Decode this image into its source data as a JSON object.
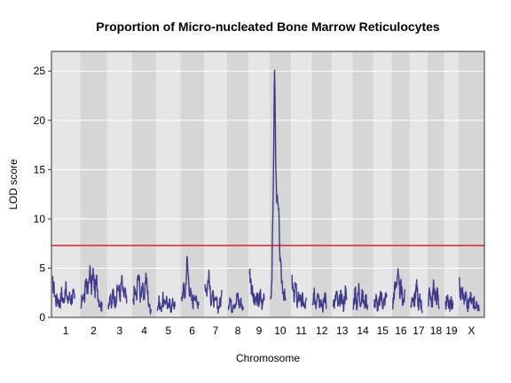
{
  "chart_data": {
    "type": "line",
    "title": "Proportion of Micro-nucleated Bone Marrow Reticulocytes",
    "xlabel": "Chromosome",
    "ylabel": "LOD score",
    "ylim": [
      0,
      27
    ],
    "yticks": [
      0,
      5,
      10,
      15,
      20,
      25
    ],
    "grid": true,
    "chromosomes": [
      "1",
      "2",
      "3",
      "4",
      "5",
      "6",
      "7",
      "8",
      "9",
      "10",
      "11",
      "12",
      "13",
      "14",
      "15",
      "16",
      "17",
      "18",
      "19",
      "X"
    ],
    "chromosome_lengths": [
      195,
      182,
      160,
      157,
      152,
      150,
      145,
      130,
      125,
      131,
      122,
      120,
      121,
      125,
      104,
      98,
      95,
      91,
      61,
      171
    ],
    "threshold": 7.3,
    "threshold_color": "#dd2222",
    "line_color": "#3f3a8c",
    "peaks": [
      {
        "chromosome": "1",
        "values": [
          3.5,
          2.8,
          1.6,
          2.0,
          1.2,
          2.6,
          1.4,
          3.3,
          1.5,
          2.2,
          1.8,
          2.4,
          1.6
        ]
      },
      {
        "chromosome": "2",
        "values": [
          0.8,
          2.5,
          1.8,
          3.9,
          2.4,
          5.0,
          3.0,
          4.6,
          2.7,
          3.8,
          2.0,
          1.5,
          1.0
        ]
      },
      {
        "chromosome": "3",
        "values": [
          1.2,
          2.3,
          0.9,
          2.8,
          1.6,
          2.2,
          3.2,
          2.0,
          3.9,
          2.1,
          2.6,
          1.3
        ]
      },
      {
        "chromosome": "4",
        "values": [
          1.5,
          2.9,
          1.8,
          5.0,
          2.2,
          3.3,
          1.4,
          4.4,
          2.6,
          1.0,
          0.9
        ]
      },
      {
        "chromosome": "5",
        "values": [
          1.0,
          1.6,
          0.7,
          2.0,
          1.1,
          2.2,
          0.8,
          1.5,
          0.9,
          1.7,
          1.0
        ]
      },
      {
        "chromosome": "6",
        "values": [
          1.5,
          3.0,
          2.2,
          6.0,
          3.3,
          2.1,
          1.4,
          2.8,
          1.2,
          1.9
        ]
      },
      {
        "chromosome": "7",
        "values": [
          3.5,
          2.6,
          4.4,
          1.9,
          2.4,
          1.2,
          1.7,
          0.9,
          1.5,
          2.0
        ]
      },
      {
        "chromosome": "8",
        "values": [
          1.2,
          2.1,
          0.8,
          1.8,
          1.1,
          2.4,
          1.3,
          1.6,
          0.7
        ]
      },
      {
        "chromosome": "9",
        "values": [
          5.0,
          3.2,
          2.0,
          1.3,
          2.1,
          1.5,
          2.3,
          1.0,
          2.6
        ]
      },
      {
        "chromosome": "10",
        "values": [
          2.0,
          3.5,
          12.0,
          26.0,
          14.0,
          11.5,
          10.5,
          5.5,
          4.0,
          3.0,
          2.2,
          1.5
        ]
      },
      {
        "chromosome": "11",
        "values": [
          3.6,
          2.0,
          3.4,
          1.5,
          2.6,
          1.2,
          2.0,
          0.9,
          1.6
        ]
      },
      {
        "chromosome": "12",
        "values": [
          1.0,
          2.2,
          1.4,
          3.2,
          1.6,
          2.0,
          0.8,
          2.4,
          1.1
        ]
      },
      {
        "chromosome": "13",
        "values": [
          2.0,
          1.2,
          2.6,
          1.0,
          1.8,
          2.2,
          1.1,
          2.7,
          1.6
        ]
      },
      {
        "chromosome": "14",
        "values": [
          1.4,
          2.6,
          1.1,
          3.1,
          1.6,
          2.2,
          1.3,
          1.9,
          1.0
        ]
      },
      {
        "chromosome": "15",
        "values": [
          1.2,
          2.0,
          0.9,
          1.6,
          2.2,
          1.3,
          1.8,
          2.3
        ]
      },
      {
        "chromosome": "16",
        "values": [
          1.3,
          2.8,
          3.4,
          4.6,
          2.5,
          3.1,
          1.6,
          2.0
        ]
      },
      {
        "chromosome": "17",
        "values": [
          1.0,
          2.3,
          1.5,
          3.4,
          1.2,
          2.0,
          0.8
        ]
      },
      {
        "chromosome": "18",
        "values": [
          1.4,
          2.8,
          1.2,
          3.3,
          1.9,
          2.4,
          1.1
        ]
      },
      {
        "chromosome": "19",
        "values": [
          1.2,
          1.8,
          1.0,
          1.6,
          0.9
        ]
      },
      {
        "chromosome": "X",
        "values": [
          3.2,
          2.0,
          2.6,
          1.4,
          1.9,
          1.0,
          1.6,
          2.1,
          1.2,
          1.8,
          0.9,
          1.5,
          0.6
        ]
      }
    ]
  }
}
